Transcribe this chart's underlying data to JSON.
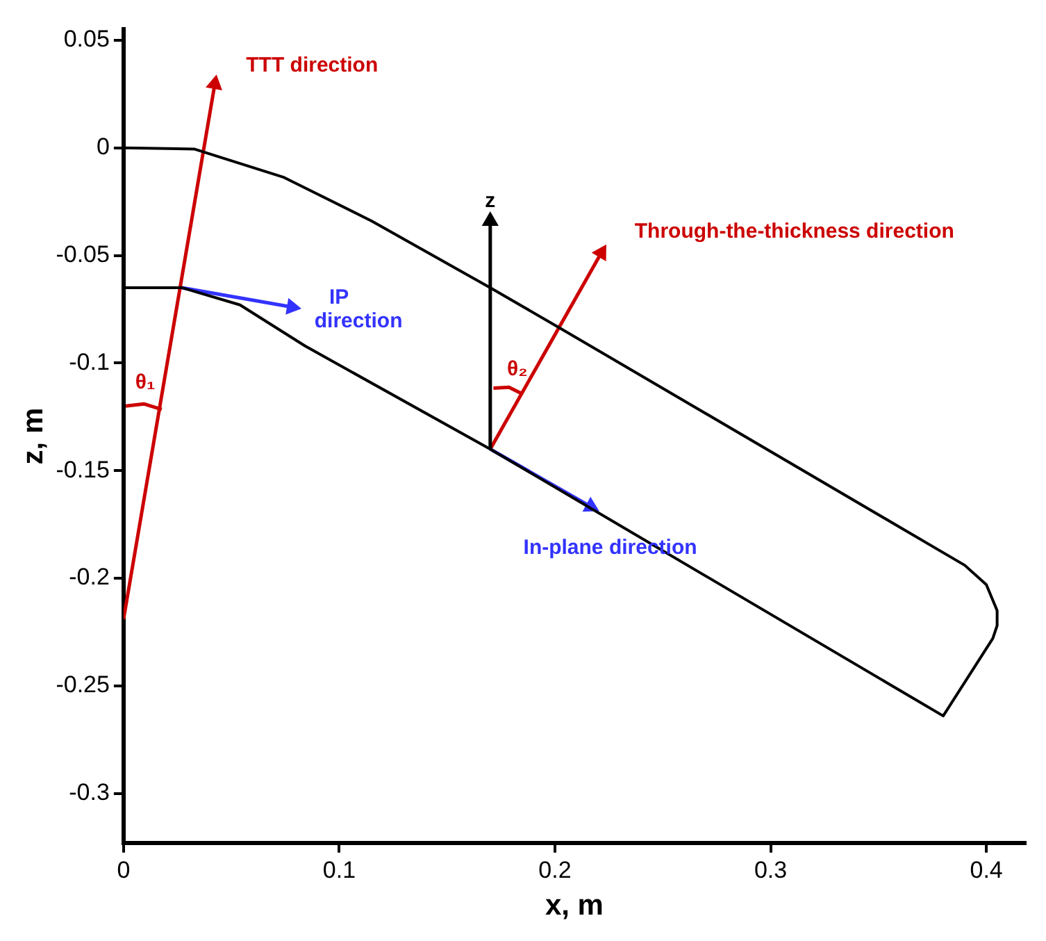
{
  "chart_data": {
    "type": "line",
    "xlabel": "x, m",
    "ylabel": "z, m",
    "xlim": [
      0,
      0.418
    ],
    "ylim": [
      -0.323,
      0.055
    ],
    "xticks": [
      0,
      0.1,
      0.2,
      0.3,
      0.4
    ],
    "yticks": [
      0.05,
      0,
      -0.05,
      -0.1,
      -0.15,
      -0.2,
      -0.25,
      -0.3
    ],
    "grid": false,
    "legend": false,
    "line_style": "solid",
    "series": [
      {
        "color": "#000000",
        "marker": "none",
        "x": [
          0,
          0.033,
          0.074,
          0.115,
          0.17,
          0.201,
          0.39,
          0.4,
          0.405,
          0.405,
          0.403,
          0.38,
          0.17,
          0.084,
          0.054,
          0.027,
          0
        ],
        "values": [
          0,
          -0.0006,
          -0.0136,
          -0.034,
          -0.065,
          -0.083,
          -0.194,
          -0.203,
          -0.215,
          -0.222,
          -0.228,
          -0.264,
          -0.14,
          -0.092,
          -0.073,
          -0.065,
          -0.065
        ]
      },
      {
        "name": "TTT direction",
        "color": "#cc0000",
        "marker": "triangle",
        "x": [
          0,
          0.0423
        ],
        "values": [
          -0.219,
          0.0296
        ]
      },
      {
        "name": "IP direction",
        "color": "#3333ff",
        "marker": "triangle",
        "x": [
          0.027,
          0.078
        ],
        "values": [
          -0.065,
          -0.074
        ]
      },
      {
        "name": "z",
        "color": "#000000",
        "marker": "triangle",
        "x": [
          0.17,
          0.17
        ],
        "values": [
          -0.14,
          -0.034
        ]
      },
      {
        "name": "Through-the-thickness direction",
        "color": "#cc0000",
        "marker": "triangle",
        "x": [
          0.17,
          0.2215
        ],
        "values": [
          -0.14,
          -0.0488
        ]
      },
      {
        "name": "In-plane direction",
        "color": "#3333ff",
        "marker": "triangle",
        "x": [
          0.17,
          0.2166
        ],
        "values": [
          -0.14,
          -0.1667
        ]
      },
      {
        "name": "θ₁",
        "color": "#cc0000",
        "marker": "none",
        "x": [
          0.001,
          0.0094,
          0.0177
        ],
        "values": [
          -0.12,
          -0.119,
          -0.1216
        ]
      },
      {
        "name": "θ₂",
        "color": "#cc0000",
        "marker": "none",
        "x": [
          0.1715,
          0.1787,
          0.185
        ],
        "values": [
          -0.1117,
          -0.1113,
          -0.1144
        ]
      }
    ]
  }
}
